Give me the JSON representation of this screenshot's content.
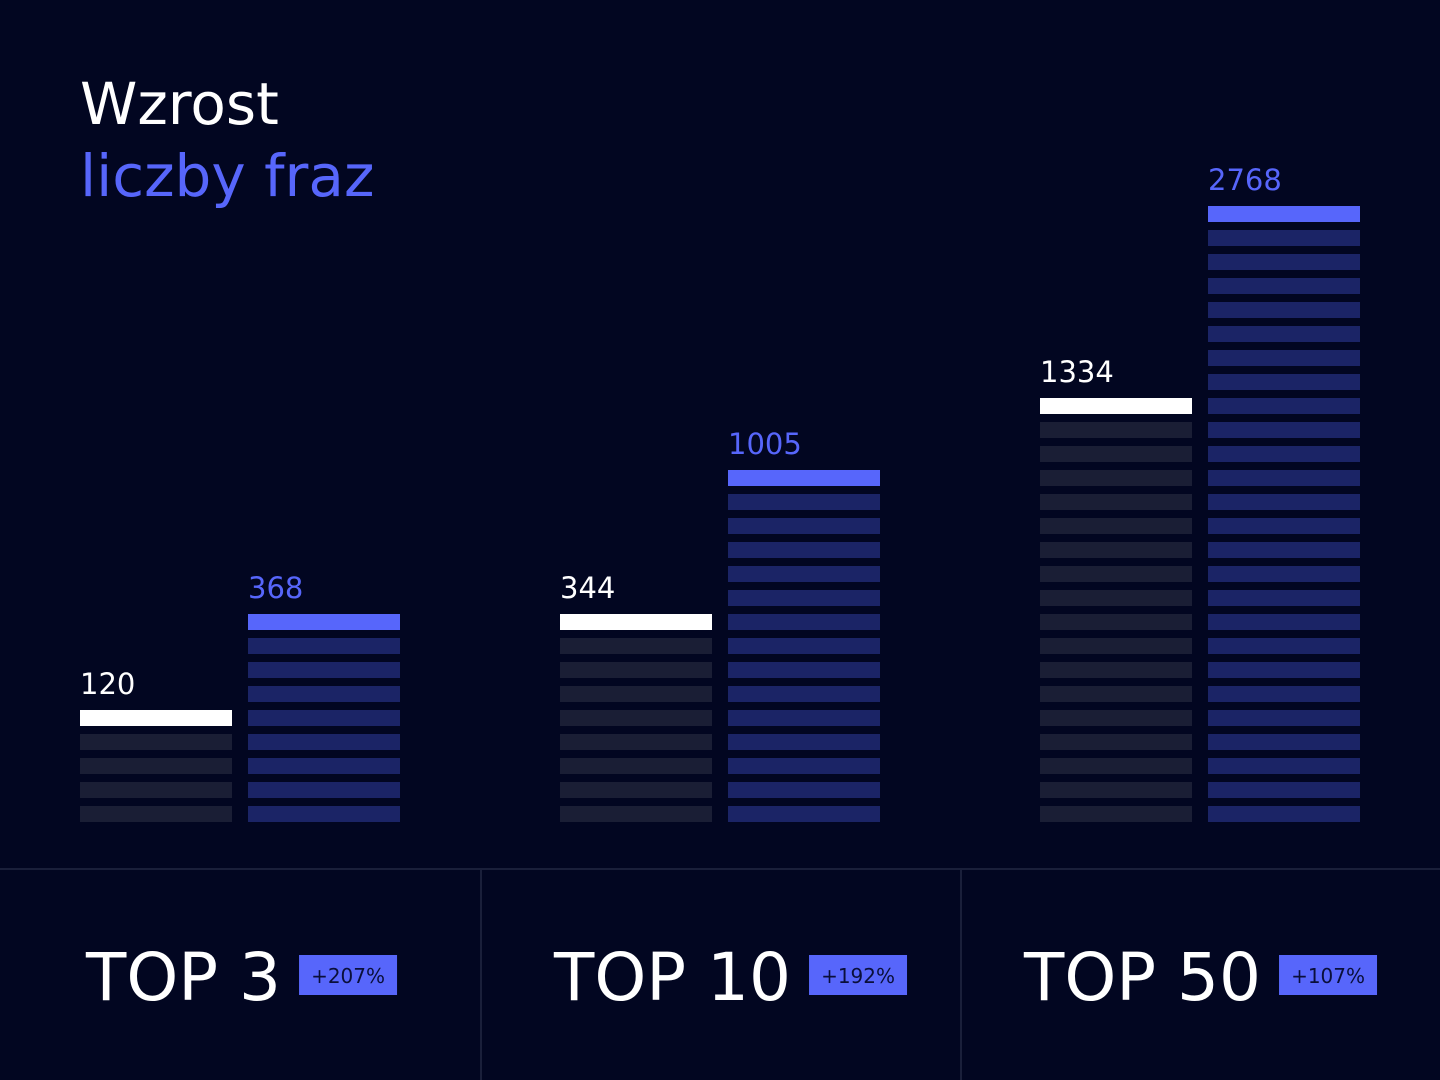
{
  "chart_data": {
    "type": "bar",
    "title": "Wzrost",
    "subtitle": "liczby fraz",
    "categories": [
      "TOP 3",
      "TOP 10",
      "TOP 50"
    ],
    "series": [
      {
        "color": "#ffffff",
        "values": [
          120,
          344,
          1334
        ]
      },
      {
        "color": "#5766fb",
        "values": [
          368,
          1005,
          2768
        ]
      }
    ],
    "changes": {
      "values": [
        207,
        192,
        107
      ],
      "value_labels": [
        "+207%",
        "+192%",
        "+107%"
      ],
      "color": "#5766fb"
    },
    "scale": "sqrt"
  }
}
